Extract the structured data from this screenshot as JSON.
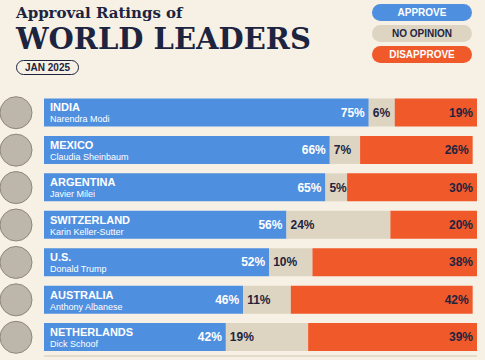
{
  "chart_data": {
    "type": "bar",
    "orientation": "horizontal",
    "stacked": true,
    "data_labels": true,
    "tick_labels": false,
    "title": "WORLD LEADERS",
    "subtitle": "Approval Ratings of",
    "annotations": [
      "JAN 2025"
    ],
    "categories": [
      "INDIA",
      "MEXICO",
      "ARGENTINA",
      "SWITZERLAND",
      "U.S.",
      "AUSTRALIA",
      "NETHERLANDS"
    ],
    "leaders": [
      "Narendra Modi",
      "Claudia Sheinbaum",
      "Javier Milei",
      "Karin Keller-Sutter",
      "Donald Trump",
      "Anthony Albanese",
      "Dick Schoof"
    ],
    "xlim": [
      0,
      100
    ],
    "legend": "top-right",
    "series": [
      {
        "name": "APPROVE",
        "color": "#4f8fe0",
        "values": [
          75,
          66,
          65,
          56,
          52,
          46,
          42
        ],
        "value_labels": [
          "75%",
          "66%",
          "65%",
          "56%",
          "52%",
          "46%",
          "42%"
        ]
      },
      {
        "name": "NO OPINION",
        "color": "#ddd5c2",
        "values": [
          6,
          7,
          5,
          24,
          10,
          11,
          19
        ],
        "value_labels": [
          "6%",
          "7%",
          "5%",
          "24%",
          "10%",
          "11%",
          "19%"
        ]
      },
      {
        "name": "DISAPPROVE",
        "color": "#f0592a",
        "values": [
          19,
          26,
          30,
          20,
          38,
          42,
          39
        ],
        "value_labels": [
          "19%",
          "26%",
          "30%",
          "20%",
          "38%",
          "42%",
          "39%"
        ]
      }
    ]
  }
}
